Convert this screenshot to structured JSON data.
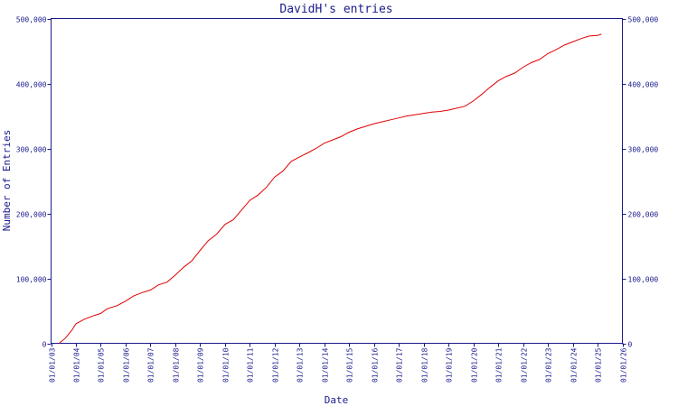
{
  "chart_data": {
    "type": "line",
    "title": "DavidH's entries",
    "xlabel": "Date",
    "ylabel": "Number of Entries",
    "x_tick_labels": [
      "01/01/03",
      "01/01/04",
      "01/01/05",
      "01/01/06",
      "01/01/07",
      "01/01/08",
      "01/01/09",
      "01/01/10",
      "01/01/11",
      "01/01/12",
      "01/01/13",
      "01/01/14",
      "01/01/15",
      "01/01/16",
      "01/01/17",
      "01/01/18",
      "01/01/19",
      "01/01/20",
      "01/01/21",
      "01/01/22",
      "01/01/23",
      "01/01/24",
      "01/01/25",
      "01/01/26"
    ],
    "y_ticks": [
      0,
      100000,
      200000,
      300000,
      400000,
      500000
    ],
    "y_tick_labels": [
      "0",
      "100,000",
      "200,000",
      "300,000",
      "400,000",
      "500,000"
    ],
    "xlim": [
      "2003-01-01",
      "2026-01-01"
    ],
    "ylim": [
      0,
      500000
    ],
    "grid": false,
    "line_color": "#e00000",
    "axis_color": "#1a1a8c",
    "series": [
      {
        "points": [
          [
            "2003-05-01",
            0
          ],
          [
            "2003-08-01",
            8000
          ],
          [
            "2003-11-01",
            20000
          ],
          [
            "2004-01-01",
            30000
          ],
          [
            "2004-05-01",
            37000
          ],
          [
            "2004-09-01",
            42000
          ],
          [
            "2005-01-01",
            46000
          ],
          [
            "2005-04-01",
            53000
          ],
          [
            "2005-09-01",
            58000
          ],
          [
            "2006-01-01",
            65000
          ],
          [
            "2006-05-01",
            73000
          ],
          [
            "2006-09-01",
            78000
          ],
          [
            "2007-01-01",
            82000
          ],
          [
            "2007-05-01",
            90000
          ],
          [
            "2007-09-01",
            94000
          ],
          [
            "2008-01-01",
            105000
          ],
          [
            "2008-05-01",
            117000
          ],
          [
            "2008-09-01",
            127000
          ],
          [
            "2009-01-01",
            143000
          ],
          [
            "2009-05-01",
            158000
          ],
          [
            "2009-09-01",
            168000
          ],
          [
            "2010-01-01",
            183000
          ],
          [
            "2010-05-01",
            190000
          ],
          [
            "2010-09-01",
            205000
          ],
          [
            "2011-01-01",
            220000
          ],
          [
            "2011-05-01",
            228000
          ],
          [
            "2011-09-01",
            240000
          ],
          [
            "2012-01-01",
            256000
          ],
          [
            "2012-05-01",
            265000
          ],
          [
            "2012-09-01",
            280000
          ],
          [
            "2013-01-01",
            287000
          ],
          [
            "2013-05-01",
            293000
          ],
          [
            "2013-09-01",
            300000
          ],
          [
            "2014-01-01",
            308000
          ],
          [
            "2014-05-01",
            313000
          ],
          [
            "2014-09-01",
            318000
          ],
          [
            "2015-01-01",
            325000
          ],
          [
            "2015-05-01",
            330000
          ],
          [
            "2015-09-01",
            334000
          ],
          [
            "2016-01-01",
            338000
          ],
          [
            "2016-05-01",
            341000
          ],
          [
            "2016-09-01",
            344000
          ],
          [
            "2017-01-01",
            347000
          ],
          [
            "2017-05-01",
            350000
          ],
          [
            "2017-09-01",
            352000
          ],
          [
            "2018-01-01",
            354000
          ],
          [
            "2018-05-01",
            356000
          ],
          [
            "2018-09-01",
            357000
          ],
          [
            "2019-01-01",
            359000
          ],
          [
            "2019-05-01",
            362000
          ],
          [
            "2019-09-01",
            365000
          ],
          [
            "2020-01-01",
            373000
          ],
          [
            "2020-05-01",
            383000
          ],
          [
            "2020-09-01",
            394000
          ],
          [
            "2021-01-01",
            404000
          ],
          [
            "2021-05-01",
            411000
          ],
          [
            "2021-09-01",
            416000
          ],
          [
            "2022-01-01",
            425000
          ],
          [
            "2022-05-01",
            432000
          ],
          [
            "2022-09-01",
            437000
          ],
          [
            "2023-01-01",
            446000
          ],
          [
            "2023-05-01",
            452000
          ],
          [
            "2023-09-01",
            459000
          ],
          [
            "2024-01-01",
            464000
          ],
          [
            "2024-05-01",
            469000
          ],
          [
            "2024-09-01",
            473000
          ],
          [
            "2025-01-01",
            474000
          ],
          [
            "2025-03-01",
            476000
          ]
        ]
      }
    ]
  }
}
